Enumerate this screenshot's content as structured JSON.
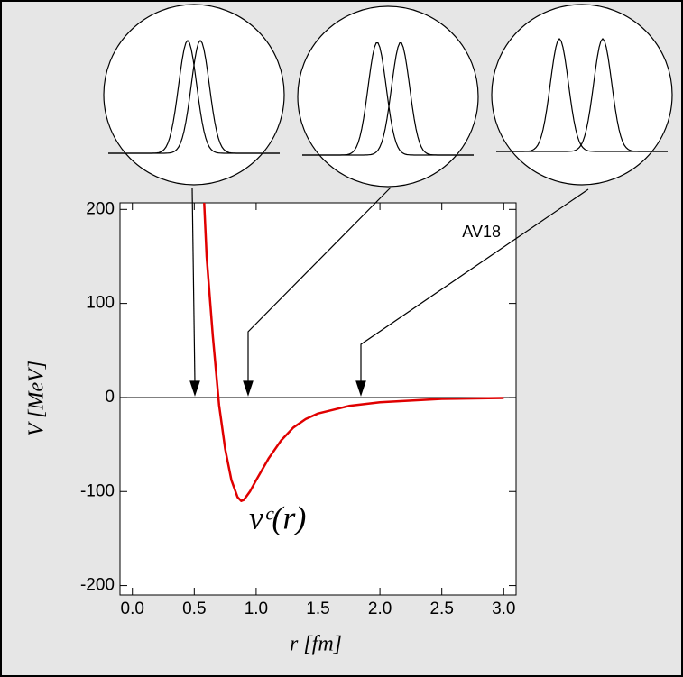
{
  "chart_data": {
    "type": "line",
    "x": [
      0.58,
      0.6,
      0.65,
      0.7,
      0.75,
      0.8,
      0.85,
      0.88,
      0.9,
      0.95,
      1.0,
      1.1,
      1.2,
      1.3,
      1.4,
      1.5,
      1.75,
      2.0,
      2.5,
      3.0
    ],
    "series": [
      {
        "name": "AV18",
        "color": "#e00000",
        "values": [
          207,
          150,
          65,
          -8,
          -55,
          -88,
          -106,
          -110,
          -109,
          -100,
          -88,
          -65,
          -46,
          -32,
          -23,
          -17,
          -9,
          -5,
          -1.5,
          -0.5
        ]
      }
    ],
    "annotation": "vᶜ(r)",
    "xlabel": "r [fm]",
    "ylabel": "V [MeV]",
    "xlim": [
      -0.1,
      3.1
    ],
    "ylim": [
      -210,
      207
    ],
    "xticks": [
      {
        "value": 0,
        "label": "0.0"
      },
      0.5,
      {
        "value": 1,
        "label": "1.0"
      },
      1.5,
      {
        "value": 2,
        "label": "2.0"
      },
      2.5,
      {
        "value": 3,
        "label": "3.0"
      }
    ],
    "yticks": [
      -200,
      -100,
      0,
      100,
      200
    ]
  }
}
